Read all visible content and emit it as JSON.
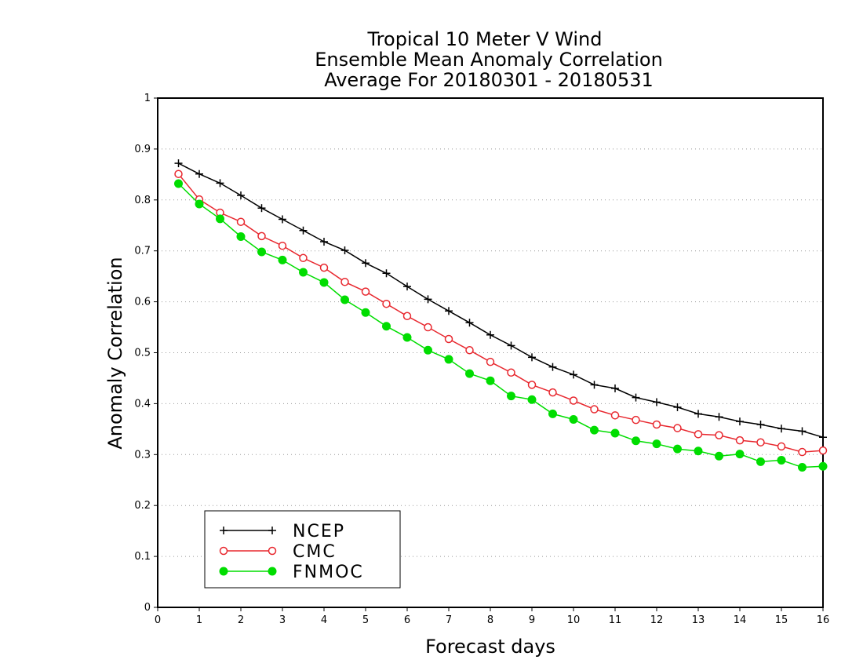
{
  "chart_data": {
    "type": "line",
    "title": [
      "Tropical 10 Meter V Wind",
      "Ensemble Mean Anomaly Correlation",
      "Average For 20180301 - 20180531"
    ],
    "xlabel": "Forecast days",
    "ylabel": "Anomaly Correlation",
    "xlim": [
      0,
      16
    ],
    "ylim": [
      0,
      1
    ],
    "xticks": [
      "0",
      "1",
      "2",
      "3",
      "4",
      "5",
      "6",
      "7",
      "8",
      "9",
      "10",
      "11",
      "12",
      "13",
      "14",
      "15",
      "16"
    ],
    "yticks": [
      "0",
      "0.1",
      "0.2",
      "0.3",
      "0.4",
      "0.5",
      "0.6",
      "0.7",
      "0.8",
      "0.9",
      "1"
    ],
    "grid": "horizontal dotted",
    "legend_position": "bottom-left",
    "x": [
      0.5,
      1,
      1.5,
      2,
      2.5,
      3,
      3.5,
      4,
      4.5,
      5,
      5.5,
      6,
      6.5,
      7,
      7.5,
      8,
      8.5,
      9,
      9.5,
      10,
      10.5,
      11,
      11.5,
      12,
      12.5,
      13,
      13.5,
      14,
      14.5,
      15,
      15.5,
      16
    ],
    "series": [
      {
        "name": "NCEP",
        "color": "#000000",
        "marker": "plus",
        "values": [
          0.872,
          0.851,
          0.833,
          0.809,
          0.784,
          0.762,
          0.74,
          0.718,
          0.701,
          0.676,
          0.656,
          0.63,
          0.605,
          0.582,
          0.559,
          0.535,
          0.514,
          0.491,
          0.472,
          0.457,
          0.437,
          0.43,
          0.412,
          0.403,
          0.393,
          0.38,
          0.374,
          0.365,
          0.359,
          0.351,
          0.346,
          0.334
        ]
      },
      {
        "name": "CMC",
        "color": "#e8282f",
        "marker": "open-circle",
        "values": [
          0.851,
          0.801,
          0.775,
          0.757,
          0.729,
          0.71,
          0.686,
          0.667,
          0.639,
          0.62,
          0.596,
          0.572,
          0.55,
          0.527,
          0.505,
          0.482,
          0.461,
          0.437,
          0.422,
          0.406,
          0.389,
          0.377,
          0.368,
          0.359,
          0.352,
          0.34,
          0.338,
          0.328,
          0.324,
          0.316,
          0.305,
          0.308
        ]
      },
      {
        "name": "FNMOC",
        "color": "#00dd00",
        "marker": "filled-circle",
        "values": [
          0.832,
          0.792,
          0.763,
          0.728,
          0.698,
          0.682,
          0.658,
          0.638,
          0.604,
          0.579,
          0.552,
          0.53,
          0.505,
          0.487,
          0.459,
          0.445,
          0.415,
          0.408,
          0.38,
          0.369,
          0.348,
          0.342,
          0.327,
          0.321,
          0.311,
          0.307,
          0.297,
          0.301,
          0.286,
          0.289,
          0.275,
          0.277
        ]
      }
    ]
  }
}
